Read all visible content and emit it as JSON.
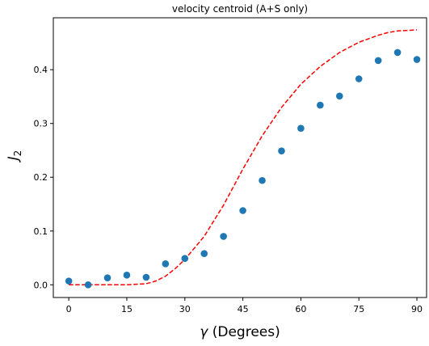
{
  "chart_data": {
    "type": "scatter",
    "title": "velocity centroid (A+S only)",
    "xlabel_symbol": "γ",
    "xlabel_text": " (Degrees)",
    "ylabel_base": "J",
    "ylabel_sub": "2",
    "xlim": [
      -4,
      92.5
    ],
    "ylim": [
      -0.0236,
      0.4965
    ],
    "xticks": [
      0,
      15,
      30,
      45,
      60,
      75,
      90
    ],
    "yticks": [
      0.0,
      0.1,
      0.2,
      0.3,
      0.4
    ],
    "xtick_labels": [
      "0",
      "15",
      "30",
      "45",
      "60",
      "75",
      "90"
    ],
    "ytick_labels": [
      "0.0",
      "0.1",
      "0.2",
      "0.3",
      "0.4"
    ],
    "grid": false,
    "series": [
      {
        "kind": "points",
        "color": "#1f77b4",
        "x": [
          0,
          5,
          10,
          15,
          20,
          25,
          30,
          35,
          40,
          45,
          50,
          55,
          60,
          65,
          70,
          75,
          80,
          85,
          90
        ],
        "y": [
          0.007,
          0.0,
          0.013,
          0.018,
          0.014,
          0.039,
          0.049,
          0.058,
          0.09,
          0.138,
          0.194,
          0.249,
          0.291,
          0.334,
          0.351,
          0.383,
          0.417,
          0.432,
          0.419
        ]
      },
      {
        "kind": "dashed-line",
        "color": "#ff0000",
        "x": [
          0,
          5,
          10,
          15,
          20,
          22.5,
          25,
          27.5,
          30,
          35,
          40,
          45,
          50,
          55,
          60,
          65,
          70,
          75,
          80,
          82.5,
          85,
          87.5,
          90
        ],
        "y": [
          0.0,
          0.0,
          0.0,
          0.0,
          0.002,
          0.007,
          0.016,
          0.03,
          0.047,
          0.09,
          0.148,
          0.215,
          0.277,
          0.33,
          0.373,
          0.406,
          0.432,
          0.451,
          0.464,
          0.469,
          0.472,
          0.473,
          0.474
        ]
      }
    ]
  }
}
